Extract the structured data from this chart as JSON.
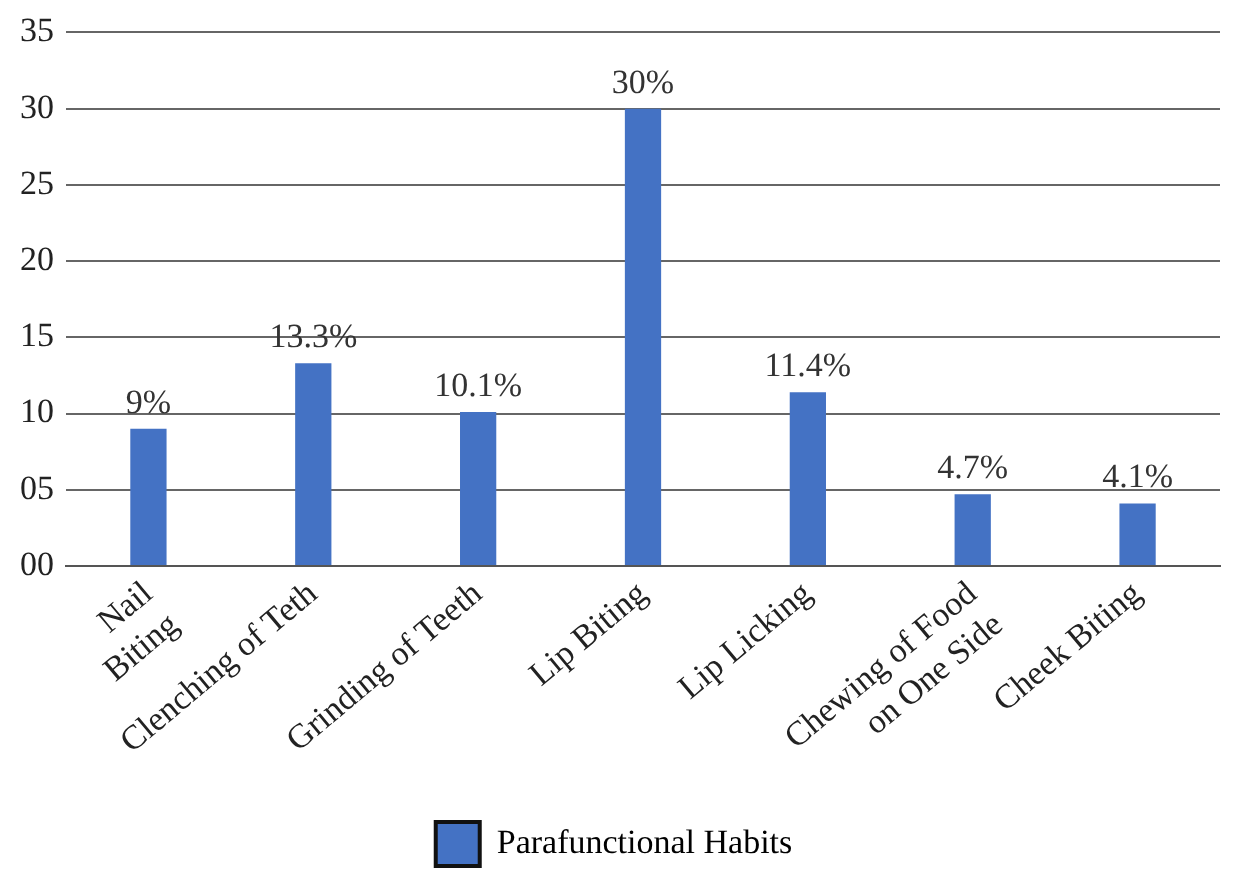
{
  "chart_data": {
    "type": "bar",
    "categories": [
      "Nail\nBiting",
      "Clenching of Teth",
      "Grinding of Teeth",
      "Lip Biting",
      "Lip Licking",
      "Chewing of Food\non One Side",
      "Cheek Biting"
    ],
    "series": [
      {
        "name": "Parafunctional Habits",
        "color": "#4472c4",
        "values": [
          9,
          13.3,
          10.1,
          30,
          11.4,
          4.7,
          4.1
        ],
        "value_labels": [
          "9%",
          "13.3%",
          "10.1%",
          "30%",
          "11.4%",
          "4.7%",
          "4.1%"
        ]
      }
    ],
    "ylim": [
      0,
      35
    ],
    "yticks": [
      {
        "value": 0,
        "label": "00"
      },
      {
        "value": 5,
        "label": "05"
      },
      10,
      15,
      20,
      25,
      30,
      35
    ],
    "grid": "y",
    "legend": "bottom"
  }
}
